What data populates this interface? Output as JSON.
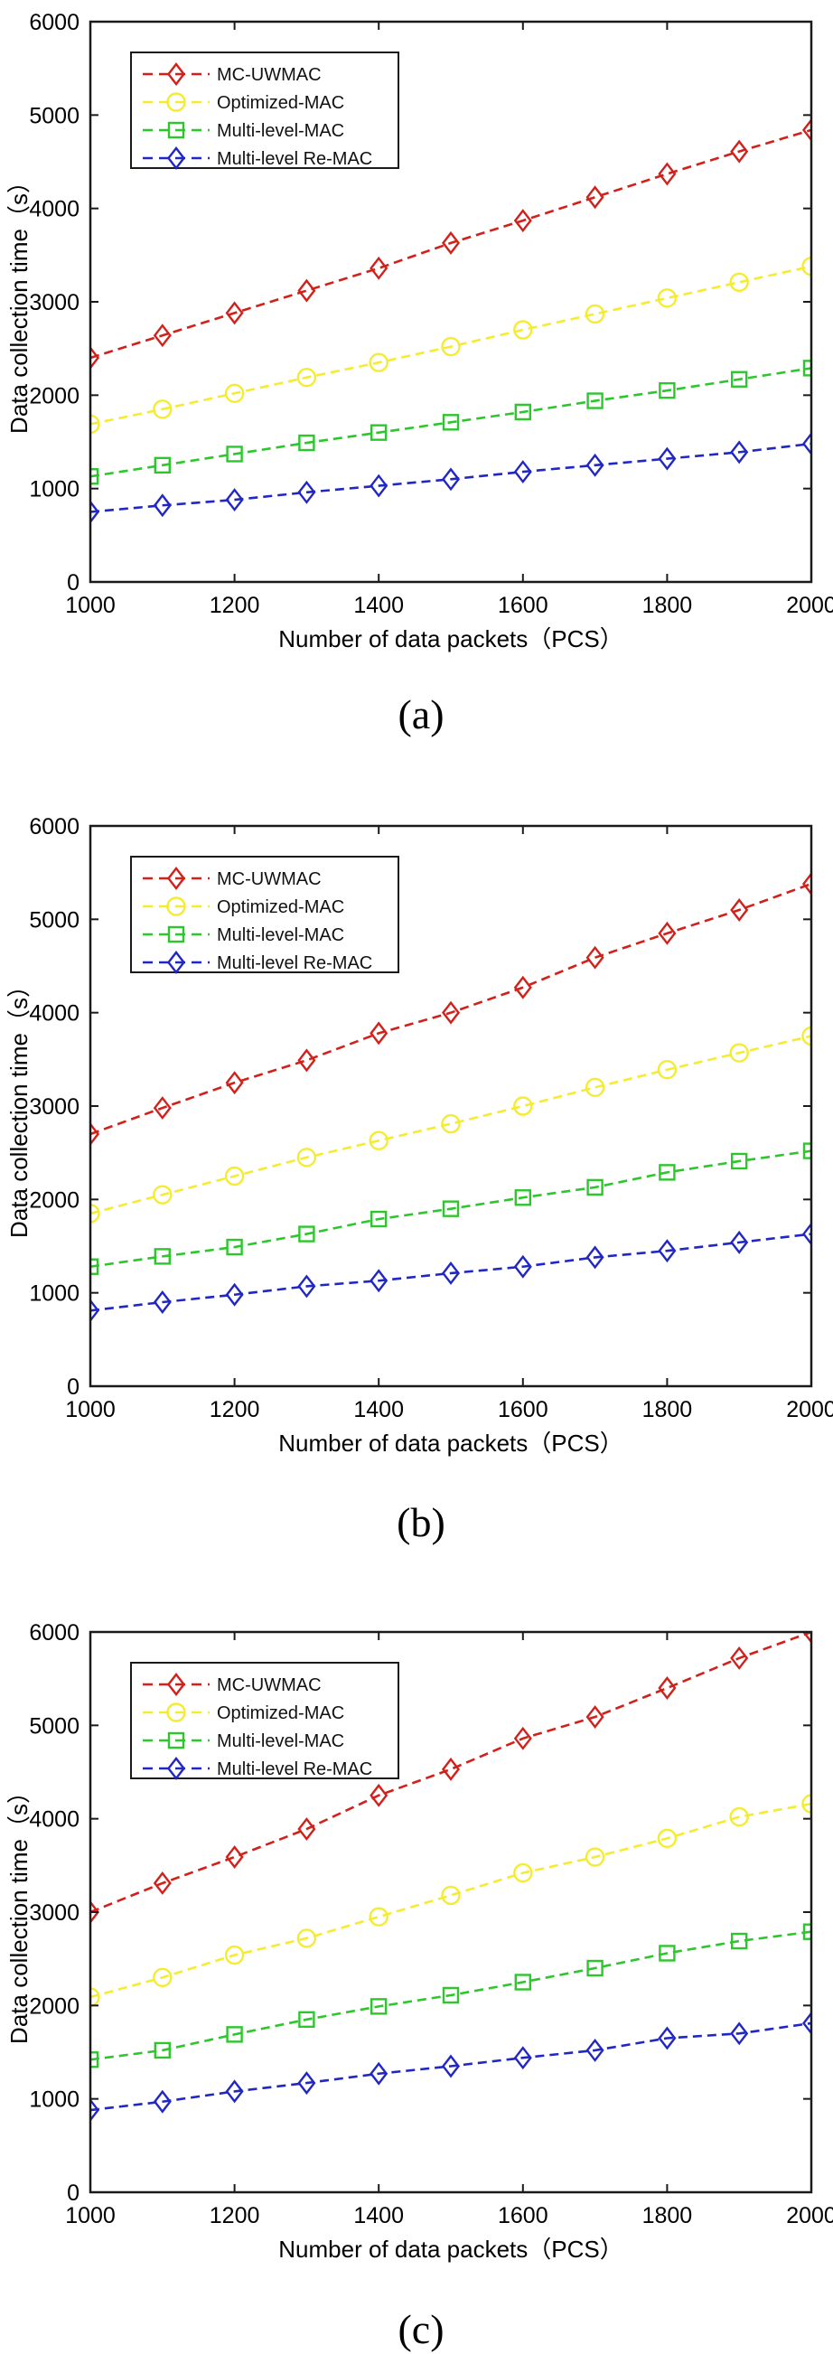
{
  "figure": {
    "background": "#ffffff",
    "axis_color": "#1a1a1a",
    "caption_a": "(a)",
    "caption_b": "(b)",
    "caption_c": "(c)"
  },
  "chart_data": [
    {
      "id": "a",
      "type": "line",
      "caption": "(a)",
      "xlabel": "Number of data packets（PCS）",
      "ylabel": "Data collection time（s）",
      "xlim": [
        1000,
        2000
      ],
      "ylim": [
        0,
        6000
      ],
      "x_ticks": [
        1000,
        1200,
        1400,
        1600,
        1800,
        2000
      ],
      "y_ticks": [
        0,
        1000,
        2000,
        3000,
        4000,
        5000,
        6000
      ],
      "grid": false,
      "legend_position": "top-left",
      "x": [
        1000,
        1100,
        1200,
        1300,
        1400,
        1500,
        1600,
        1700,
        1800,
        1900,
        2000
      ],
      "series": [
        {
          "name": "MC-UWMAC",
          "color": "#d2201a",
          "marker": "diamond",
          "linestyle": "dashed",
          "values": [
            2400,
            2640,
            2880,
            3120,
            3360,
            3630,
            3870,
            4120,
            4370,
            4610,
            4840
          ]
        },
        {
          "name": "Optimized-MAC",
          "color": "#f5ec32",
          "marker": "circle",
          "linestyle": "dashed",
          "values": [
            1690,
            1850,
            2020,
            2190,
            2350,
            2520,
            2700,
            2870,
            3040,
            3210,
            3380
          ]
        },
        {
          "name": "Multi-level-MAC",
          "color": "#2dc62d",
          "marker": "square",
          "linestyle": "dashed",
          "values": [
            1130,
            1250,
            1370,
            1490,
            1600,
            1710,
            1820,
            1940,
            2050,
            2170,
            2290
          ]
        },
        {
          "name": "Multi-level Re-MAC",
          "color": "#2127c4",
          "marker": "diamond",
          "linestyle": "dashed",
          "values": [
            750,
            820,
            880,
            960,
            1030,
            1100,
            1180,
            1250,
            1320,
            1390,
            1480
          ]
        }
      ]
    },
    {
      "id": "b",
      "type": "line",
      "caption": "(b)",
      "xlabel": "Number of data packets（PCS）",
      "ylabel": "Data collection time（s）",
      "xlim": [
        1000,
        2000
      ],
      "ylim": [
        0,
        6000
      ],
      "x_ticks": [
        1000,
        1200,
        1400,
        1600,
        1800,
        2000
      ],
      "y_ticks": [
        0,
        1000,
        2000,
        3000,
        4000,
        5000,
        6000
      ],
      "grid": false,
      "legend_position": "top-left",
      "x": [
        1000,
        1100,
        1200,
        1300,
        1400,
        1500,
        1600,
        1700,
        1800,
        1900,
        2000
      ],
      "series": [
        {
          "name": "MC-UWMAC",
          "color": "#d2201a",
          "marker": "diamond",
          "linestyle": "dashed",
          "values": [
            2700,
            2980,
            3250,
            3490,
            3780,
            4000,
            4270,
            4590,
            4850,
            5100,
            5380
          ]
        },
        {
          "name": "Optimized-MAC",
          "color": "#f5ec32",
          "marker": "circle",
          "linestyle": "dashed",
          "values": [
            1850,
            2050,
            2250,
            2450,
            2630,
            2810,
            3000,
            3200,
            3390,
            3570,
            3750
          ]
        },
        {
          "name": "Multi-level-MAC",
          "color": "#2dc62d",
          "marker": "square",
          "linestyle": "dashed",
          "values": [
            1280,
            1390,
            1490,
            1630,
            1790,
            1900,
            2020,
            2130,
            2290,
            2410,
            2520
          ]
        },
        {
          "name": "Multi-level Re-MAC",
          "color": "#2127c4",
          "marker": "diamond",
          "linestyle": "dashed",
          "values": [
            810,
            900,
            980,
            1070,
            1130,
            1210,
            1280,
            1380,
            1450,
            1540,
            1630
          ]
        }
      ]
    },
    {
      "id": "c",
      "type": "line",
      "caption": "(c)",
      "xlabel": "Number of data packets（PCS）",
      "ylabel": "Data collection time（s）",
      "xlim": [
        1000,
        2000
      ],
      "ylim": [
        0,
        6000
      ],
      "x_ticks": [
        1000,
        1200,
        1400,
        1600,
        1800,
        2000
      ],
      "y_ticks": [
        0,
        1000,
        2000,
        3000,
        4000,
        5000,
        6000
      ],
      "grid": false,
      "legend_position": "top-left",
      "x": [
        1000,
        1100,
        1200,
        1300,
        1400,
        1500,
        1600,
        1700,
        1800,
        1900,
        2000
      ],
      "series": [
        {
          "name": "MC-UWMAC",
          "color": "#d2201a",
          "marker": "diamond",
          "linestyle": "dashed",
          "values": [
            3000,
            3310,
            3590,
            3890,
            4250,
            4530,
            4860,
            5090,
            5400,
            5720,
            6000
          ]
        },
        {
          "name": "Optimized-MAC",
          "color": "#f5ec32",
          "marker": "circle",
          "linestyle": "dashed",
          "values": [
            2090,
            2300,
            2540,
            2720,
            2950,
            3180,
            3420,
            3590,
            3790,
            4020,
            4160
          ]
        },
        {
          "name": "Multi-level-MAC",
          "color": "#2dc62d",
          "marker": "square",
          "linestyle": "dashed",
          "values": [
            1420,
            1520,
            1690,
            1850,
            1990,
            2110,
            2250,
            2400,
            2560,
            2690,
            2790
          ]
        },
        {
          "name": "Multi-level Re-MAC",
          "color": "#2127c4",
          "marker": "diamond",
          "linestyle": "dashed",
          "values": [
            880,
            970,
            1080,
            1170,
            1270,
            1350,
            1440,
            1520,
            1650,
            1700,
            1810
          ]
        }
      ]
    }
  ]
}
